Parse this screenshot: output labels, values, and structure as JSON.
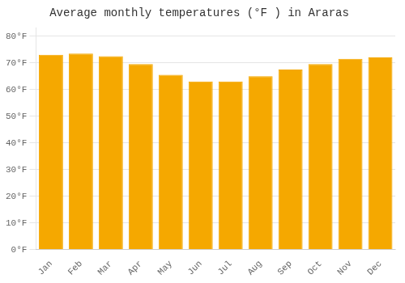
{
  "chart_data": {
    "type": "bar",
    "title": "Average monthly temperatures (°F ) in Araras",
    "categories": [
      "Jan",
      "Feb",
      "Mar",
      "Apr",
      "May",
      "Jun",
      "Jul",
      "Aug",
      "Sep",
      "Oct",
      "Nov",
      "Dec"
    ],
    "values": [
      73,
      73.5,
      72.5,
      69.5,
      65.5,
      63,
      63,
      65,
      67.5,
      69.5,
      71.5,
      72
    ],
    "color": "#F5A800",
    "ylim": [
      0,
      83
    ],
    "yticks": [
      {
        "value": 0,
        "label": "0°F"
      },
      {
        "value": 10,
        "label": "10°F"
      },
      {
        "value": 20,
        "label": "20°F"
      },
      {
        "value": 30,
        "label": "30°F"
      },
      {
        "value": 40,
        "label": "40°F"
      },
      {
        "value": 50,
        "label": "50°F"
      },
      {
        "value": 60,
        "label": "60°F"
      },
      {
        "value": 70,
        "label": "70°F"
      },
      {
        "value": 80,
        "label": "80°F"
      }
    ],
    "grid": true
  }
}
